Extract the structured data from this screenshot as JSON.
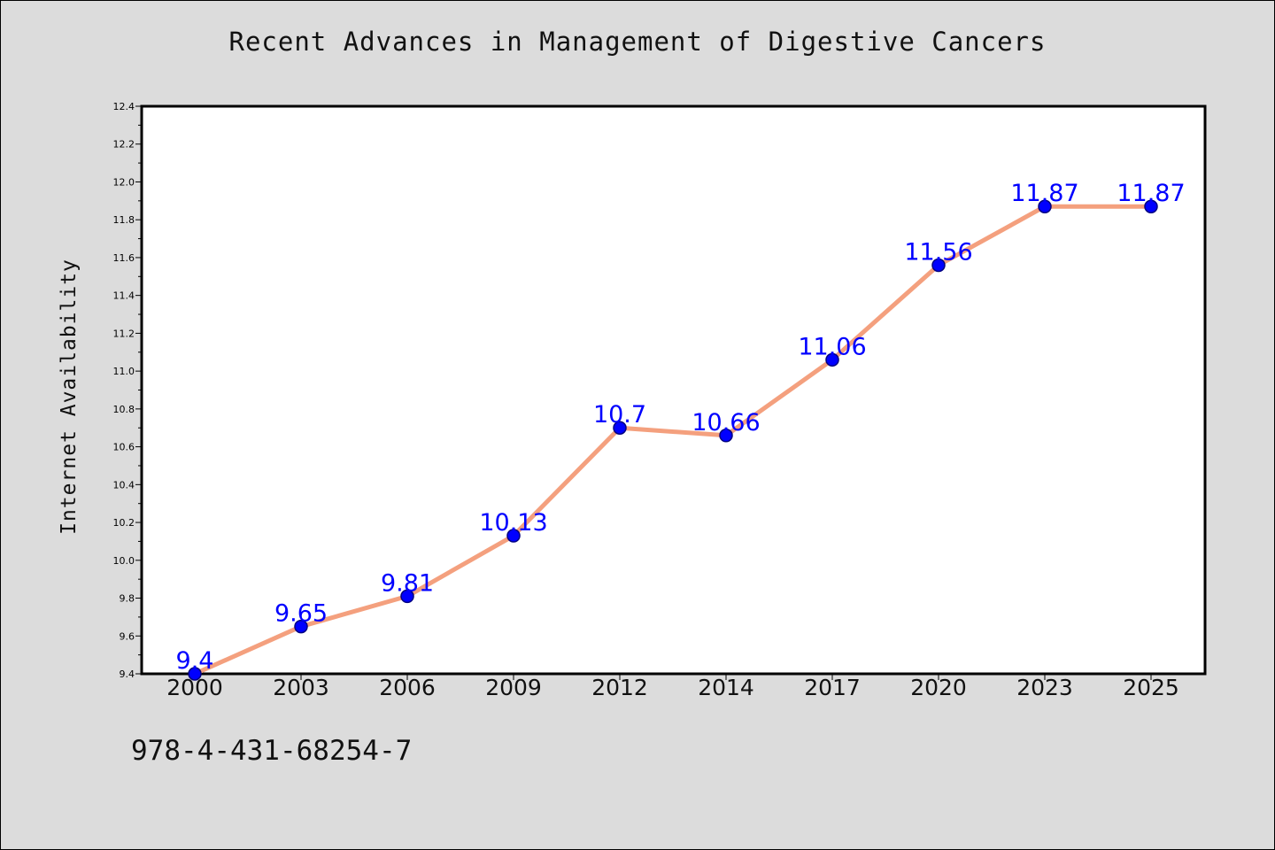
{
  "chart_data": {
    "type": "line",
    "title": "Recent Advances in Management of Digestive Cancers",
    "xlabel": "",
    "ylabel": "Internet Availability",
    "categories": [
      "2000",
      "2003",
      "2006",
      "2009",
      "2012",
      "2014",
      "2017",
      "2020",
      "2023",
      "2025"
    ],
    "series": [
      {
        "values": [
          9.4,
          9.65,
          9.81,
          10.13,
          10.7,
          10.66,
          11.06,
          11.56,
          11.87,
          11.87
        ]
      }
    ],
    "data_labels": [
      "9.4",
      "9.65",
      "9.81",
      "10.13",
      "10.7",
      "10.66",
      "11.06",
      "11.56",
      "11.87",
      "11.87"
    ],
    "ylim": [
      9.4,
      12.4
    ],
    "yticks": [
      "9.4",
      "9.6",
      "9.8",
      "10.0",
      "10.2",
      "10.4",
      "10.6",
      "10.8",
      "11.0",
      "11.2",
      "11.4",
      "11.6",
      "11.8",
      "12.0",
      "12.2",
      "12.4"
    ],
    "grid": false,
    "legend": "none",
    "colors": {
      "line": "#f4a07e",
      "marker_fill": "#0000ff",
      "marker_edge": "#000080",
      "data_label": "#0000ff",
      "plot_background": "#ffffff",
      "figure_background": "#dcdcdc"
    }
  },
  "footer": {
    "isbn": "978-4-431-68254-7"
  }
}
